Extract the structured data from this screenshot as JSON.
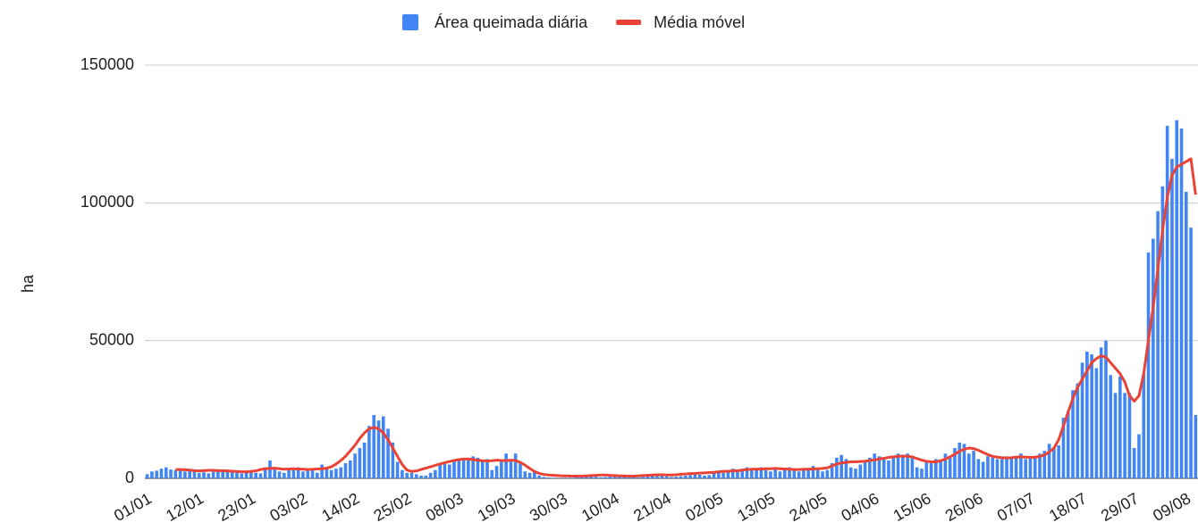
{
  "chart_data": {
    "type": "bar-line",
    "y_label": "ha",
    "categories": [
      "01/01",
      null,
      null,
      null,
      null,
      null,
      null,
      null,
      null,
      null,
      null,
      "12/01",
      null,
      null,
      null,
      null,
      null,
      null,
      null,
      null,
      null,
      null,
      "23/01",
      null,
      null,
      null,
      null,
      null,
      null,
      null,
      null,
      null,
      null,
      "03/02",
      null,
      null,
      null,
      null,
      null,
      null,
      null,
      null,
      null,
      null,
      "14/02",
      null,
      null,
      null,
      null,
      null,
      null,
      null,
      null,
      null,
      null,
      "25/02",
      null,
      null,
      null,
      null,
      null,
      null,
      null,
      null,
      null,
      null,
      "08/03",
      null,
      null,
      null,
      null,
      null,
      null,
      null,
      null,
      null,
      null,
      "19/03",
      null,
      null,
      null,
      null,
      null,
      null,
      null,
      null,
      null,
      null,
      "30/03",
      null,
      null,
      null,
      null,
      null,
      null,
      null,
      null,
      null,
      null,
      "10/04",
      null,
      null,
      null,
      null,
      null,
      null,
      null,
      null,
      null,
      null,
      "21/04",
      null,
      null,
      null,
      null,
      null,
      null,
      null,
      null,
      null,
      null,
      "02/05",
      null,
      null,
      null,
      null,
      null,
      null,
      null,
      null,
      null,
      null,
      "13/05",
      null,
      null,
      null,
      null,
      null,
      null,
      null,
      null,
      null,
      null,
      "24/05",
      null,
      null,
      null,
      null,
      null,
      null,
      null,
      null,
      null,
      null,
      "04/06",
      null,
      null,
      null,
      null,
      null,
      null,
      null,
      null,
      null,
      null,
      "15/06",
      null,
      null,
      null,
      null,
      null,
      null,
      null,
      null,
      null,
      null,
      "26/06",
      null,
      null,
      null,
      null,
      null,
      null,
      null,
      null,
      null,
      null,
      "07/07",
      null,
      null,
      null,
      null,
      null,
      null,
      null,
      null,
      null,
      null,
      "18/07",
      null,
      null,
      null,
      null,
      null,
      null,
      null,
      null,
      null,
      null,
      "29/07",
      null,
      null,
      null,
      null,
      null,
      null,
      null,
      null,
      null,
      null,
      "09/08",
      null,
      null
    ],
    "series": [
      {
        "name": "Área queimada diária",
        "kind": "bar",
        "color": "#4285f4",
        "values": [
          1500,
          2500,
          2800,
          3500,
          4000,
          3200,
          3000,
          2800,
          2500,
          3000,
          2600,
          2000,
          2200,
          1800,
          2400,
          3000,
          3200,
          2500,
          2800,
          2200,
          1800,
          2000,
          2500,
          2000,
          1800,
          4000,
          6500,
          3500,
          2500,
          2000,
          3000,
          3500,
          4000,
          2500,
          3000,
          3500,
          2000,
          5000,
          3500,
          3000,
          3500,
          4000,
          5500,
          6500,
          9000,
          11000,
          13000,
          19000,
          23000,
          21000,
          22500,
          18000,
          13000,
          6000,
          3000,
          2000,
          2000,
          1500,
          1000,
          1000,
          2000,
          3000,
          5000,
          5500,
          5000,
          6500,
          6500,
          7000,
          7500,
          8000,
          7500,
          6500,
          7000,
          3000,
          4500,
          6500,
          9000,
          6500,
          9000,
          5500,
          2500,
          2000,
          2500,
          1000,
          500,
          300,
          200,
          100,
          100,
          100,
          200,
          300,
          500,
          800,
          1000,
          600,
          400,
          500,
          800,
          1200,
          1000,
          600,
          500,
          400,
          300,
          500,
          800,
          1000,
          1200,
          900,
          700,
          500,
          600,
          800,
          1000,
          1200,
          1500,
          1300,
          1000,
          1200,
          2000,
          2500,
          2000,
          3000,
          3500,
          2500,
          3000,
          4000,
          3500,
          3000,
          4000,
          3000,
          2500,
          3500,
          2500,
          3000,
          4000,
          3500,
          2500,
          3000,
          3500,
          4500,
          3500,
          2500,
          3000,
          5500,
          7500,
          8500,
          7000,
          4000,
          3500,
          5000,
          6000,
          7500,
          9000,
          8000,
          7000,
          6500,
          8000,
          9000,
          8500,
          9000,
          7500,
          4000,
          3500,
          6000,
          5500,
          7000,
          6500,
          9000,
          8000,
          11000,
          13000,
          12500,
          9000,
          10000,
          7000,
          6000,
          8000,
          7500,
          7000,
          7000,
          8000,
          7500,
          8000,
          9000,
          7000,
          7500,
          8000,
          9000,
          10000,
          12500,
          11000,
          12000,
          22000,
          24500,
          32000,
          34500,
          42000,
          46000,
          45000,
          40000,
          47500,
          50000,
          37500,
          31000,
          37000,
          31000,
          31000,
          11000,
          16000,
          38000,
          82000,
          87000,
          97000,
          106000,
          128000,
          116000,
          130000,
          127000,
          104000,
          91000,
          23000
        ]
      },
      {
        "name": "Média móvel",
        "kind": "line",
        "color": "#ea4335",
        "values": [
          null,
          null,
          null,
          null,
          null,
          null,
          3200,
          3200,
          3100,
          3000,
          2800,
          2700,
          2800,
          2900,
          2900,
          2800,
          2800,
          2700,
          2600,
          2500,
          2400,
          2400,
          2500,
          2700,
          3200,
          3500,
          3600,
          3700,
          3500,
          3300,
          3400,
          3500,
          3400,
          3300,
          3200,
          3300,
          3400,
          3500,
          3700,
          4200,
          5200,
          6500,
          8000,
          10000,
          12000,
          14500,
          16500,
          18000,
          18500,
          18000,
          16500,
          14000,
          11000,
          8000,
          5000,
          3000,
          2500,
          2700,
          3200,
          3700,
          4200,
          4700,
          5200,
          5700,
          6100,
          6500,
          6800,
          7000,
          7000,
          6800,
          6600,
          6400,
          6300,
          6400,
          6600,
          6500,
          6400,
          6600,
          6500,
          5800,
          4800,
          3600,
          2500,
          1800,
          1400,
          1200,
          1100,
          1000,
          900,
          900,
          800,
          800,
          800,
          900,
          1000,
          1100,
          1200,
          1200,
          1100,
          1000,
          900,
          900,
          800,
          800,
          900,
          1000,
          1100,
          1200,
          1300,
          1300,
          1200,
          1200,
          1300,
          1500,
          1600,
          1700,
          1800,
          1900,
          2000,
          2100,
          2200,
          2400,
          2500,
          2600,
          2700,
          2800,
          3000,
          3200,
          3300,
          3300,
          3400,
          3500,
          3500,
          3600,
          3500,
          3400,
          3300,
          3200,
          3200,
          3300,
          3300,
          3400,
          3500,
          3600,
          3800,
          4500,
          5200,
          5600,
          5800,
          6000,
          6000,
          6100,
          6200,
          6500,
          6700,
          7000,
          7300,
          7600,
          7800,
          8000,
          8100,
          8000,
          7800,
          7200,
          6600,
          6200,
          6000,
          6000,
          6400,
          7000,
          7800,
          8800,
          9800,
          10600,
          11000,
          10800,
          10200,
          9400,
          8600,
          8000,
          7700,
          7500,
          7400,
          7500,
          7700,
          7800,
          7700,
          7600,
          7700,
          8000,
          8500,
          9500,
          11000,
          14000,
          19000,
          24000,
          29000,
          33000,
          36000,
          39000,
          42000,
          43500,
          44500,
          44000,
          42000,
          40000,
          38000,
          35000,
          30000,
          28000,
          30000,
          38000,
          50000,
          62000,
          76000,
          90000,
          102000,
          110000,
          113000,
          114000,
          115000,
          116000,
          103000
        ]
      }
    ],
    "ylim": [
      0,
      150000
    ],
    "yticks": [
      0,
      50000,
      100000,
      150000
    ],
    "grid": true,
    "legend": "top"
  }
}
